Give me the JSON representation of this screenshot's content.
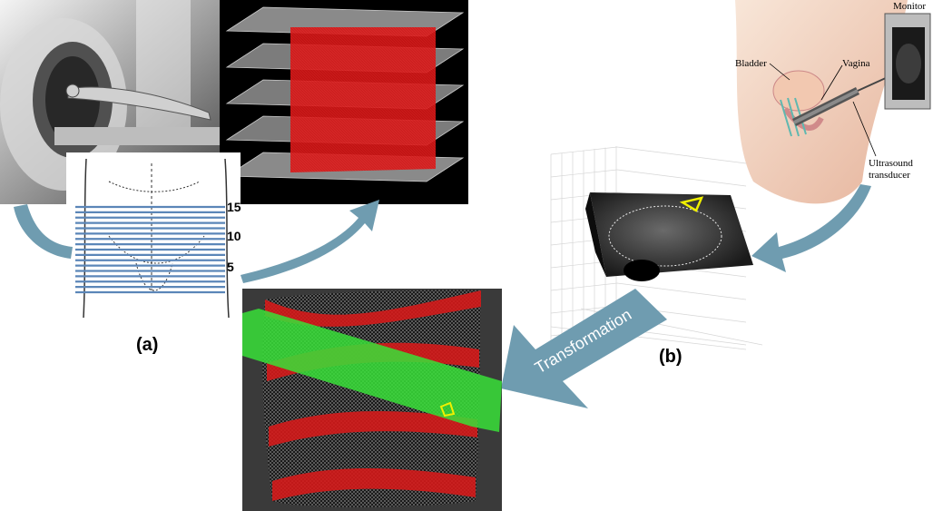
{
  "panel_a": {
    "label": "(a)",
    "scale_ticks": [
      "15",
      "10",
      "5"
    ]
  },
  "panel_b": {
    "label": "(b)",
    "anatomy_labels": {
      "bladder": "Bladder",
      "vagina": "Vagina",
      "monitor": "Monitor",
      "transducer_line1": "Ultrasound",
      "transducer_line2": "transducer"
    }
  },
  "transformation_label": "Transformation",
  "colors": {
    "arrow": "#6f9cb0",
    "contour_red": "#e01818",
    "plane_green": "#38e038",
    "outline_yellow": "#f0f000",
    "slice_lines": "#5b86b8",
    "dark_bg": "#3a3a3a"
  }
}
